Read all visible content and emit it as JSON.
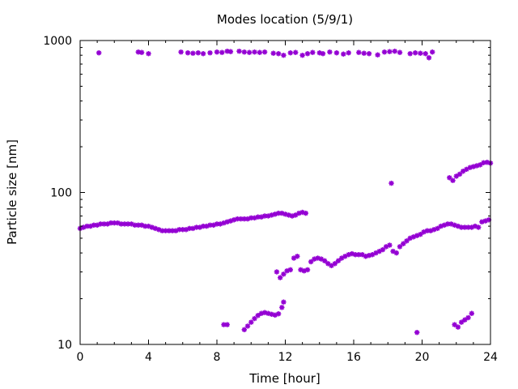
{
  "chart_data": {
    "type": "scatter",
    "title": "Modes location (5/9/1)",
    "xlabel": "Time [hour]",
    "ylabel": "Particle size [nm]",
    "xlim": [
      0,
      24
    ],
    "ylim": [
      10,
      1000
    ],
    "yscale": "log",
    "x_ticks": [
      0,
      4,
      8,
      12,
      16,
      20,
      24
    ],
    "x_tick_labels": [
      "0",
      "4",
      "8",
      "12",
      "16",
      "20",
      "24"
    ],
    "y_ticks": [
      10,
      100,
      1000
    ],
    "y_tick_labels": [
      "10",
      "100",
      "1000"
    ],
    "grid": false,
    "marker_color": "#9400d3",
    "series": [
      {
        "values": [
          [
            0,
            58
          ],
          [
            0.2,
            59
          ],
          [
            0.4,
            60
          ],
          [
            0.6,
            60
          ],
          [
            0.8,
            61
          ],
          [
            1.0,
            61
          ],
          [
            1.2,
            62
          ],
          [
            1.4,
            62
          ],
          [
            1.6,
            62
          ],
          [
            1.8,
            63
          ],
          [
            2.0,
            63
          ],
          [
            2.2,
            63
          ],
          [
            2.4,
            62
          ],
          [
            2.6,
            62
          ],
          [
            2.8,
            62
          ],
          [
            3.0,
            62
          ],
          [
            3.2,
            61
          ],
          [
            3.4,
            61
          ],
          [
            3.6,
            61
          ],
          [
            3.8,
            60
          ],
          [
            4.0,
            60
          ],
          [
            4.2,
            59
          ],
          [
            4.4,
            58
          ],
          [
            4.6,
            57
          ],
          [
            4.8,
            56
          ],
          [
            5.0,
            56
          ],
          [
            5.2,
            56
          ],
          [
            5.4,
            56
          ],
          [
            5.6,
            56
          ],
          [
            5.8,
            57
          ],
          [
            6.0,
            57
          ],
          [
            6.2,
            57
          ],
          [
            6.4,
            58
          ],
          [
            6.6,
            58
          ],
          [
            6.8,
            59
          ],
          [
            7.0,
            59
          ],
          [
            7.2,
            60
          ],
          [
            7.4,
            60
          ],
          [
            7.6,
            61
          ],
          [
            7.8,
            61
          ],
          [
            8.0,
            62
          ],
          [
            8.2,
            62
          ],
          [
            8.4,
            63
          ],
          [
            8.6,
            64
          ],
          [
            8.8,
            65
          ],
          [
            9.0,
            66
          ],
          [
            9.2,
            67
          ],
          [
            9.4,
            67
          ],
          [
            9.6,
            67
          ],
          [
            9.8,
            67
          ],
          [
            10.0,
            68
          ],
          [
            10.2,
            68
          ],
          [
            10.4,
            69
          ],
          [
            10.6,
            69
          ],
          [
            10.8,
            70
          ],
          [
            11.0,
            70
          ],
          [
            11.2,
            71
          ],
          [
            11.4,
            72
          ],
          [
            11.6,
            73
          ],
          [
            11.8,
            73
          ],
          [
            12.0,
            72
          ],
          [
            12.2,
            71
          ],
          [
            12.4,
            70
          ],
          [
            12.6,
            71
          ],
          [
            12.8,
            73
          ],
          [
            13.0,
            74
          ],
          [
            13.2,
            73
          ]
        ]
      },
      {
        "values": [
          [
            1.1,
            830
          ],
          [
            3.4,
            840
          ],
          [
            3.6,
            835
          ],
          [
            4.0,
            820
          ],
          [
            5.9,
            840
          ],
          [
            6.3,
            830
          ],
          [
            6.6,
            825
          ],
          [
            6.9,
            830
          ],
          [
            7.2,
            820
          ],
          [
            7.6,
            830
          ],
          [
            8.0,
            840
          ],
          [
            8.3,
            835
          ],
          [
            8.6,
            850
          ],
          [
            8.8,
            845
          ],
          [
            9.3,
            850
          ],
          [
            9.6,
            840
          ],
          [
            9.9,
            835
          ],
          [
            10.2,
            840
          ],
          [
            10.5,
            835
          ],
          [
            10.8,
            840
          ],
          [
            11.3,
            825
          ],
          [
            11.6,
            820
          ],
          [
            11.9,
            800
          ],
          [
            12.3,
            830
          ],
          [
            12.6,
            835
          ],
          [
            13.0,
            800
          ],
          [
            13.3,
            820
          ],
          [
            13.6,
            835
          ],
          [
            14.0,
            830
          ],
          [
            14.2,
            820
          ],
          [
            14.6,
            840
          ],
          [
            15.0,
            830
          ],
          [
            15.4,
            815
          ],
          [
            15.7,
            830
          ],
          [
            16.3,
            835
          ],
          [
            16.6,
            825
          ],
          [
            16.9,
            820
          ],
          [
            17.4,
            805
          ],
          [
            17.8,
            840
          ],
          [
            18.1,
            845
          ],
          [
            18.4,
            850
          ],
          [
            18.7,
            835
          ],
          [
            19.3,
            820
          ],
          [
            19.6,
            830
          ],
          [
            19.9,
            825
          ],
          [
            20.2,
            820
          ],
          [
            20.4,
            770
          ],
          [
            20.6,
            840
          ]
        ]
      },
      {
        "values": [
          [
            8.4,
            13.5
          ],
          [
            8.6,
            13.5
          ],
          [
            9.6,
            12.5
          ],
          [
            9.8,
            13.2
          ],
          [
            10.0,
            14.0
          ],
          [
            10.2,
            14.8
          ],
          [
            10.4,
            15.5
          ],
          [
            10.6,
            16.0
          ],
          [
            10.8,
            16.2
          ],
          [
            11.0,
            16.0
          ],
          [
            11.2,
            15.8
          ],
          [
            11.4,
            15.6
          ],
          [
            11.6,
            15.9
          ],
          [
            11.8,
            17.5
          ],
          [
            11.9,
            19.0
          ]
        ]
      },
      {
        "values": [
          [
            11.5,
            30
          ],
          [
            11.7,
            27.5
          ],
          [
            11.9,
            29
          ],
          [
            12.1,
            30.5
          ],
          [
            12.3,
            31
          ],
          [
            12.5,
            37
          ],
          [
            12.7,
            38
          ],
          [
            12.9,
            31
          ],
          [
            13.1,
            30.5
          ],
          [
            13.3,
            31
          ],
          [
            13.5,
            35
          ],
          [
            13.7,
            36.5
          ],
          [
            13.9,
            37
          ],
          [
            14.1,
            36.5
          ],
          [
            14.3,
            35.5
          ],
          [
            14.5,
            34
          ],
          [
            14.7,
            33
          ],
          [
            14.9,
            34
          ],
          [
            15.1,
            35.5
          ],
          [
            15.3,
            37
          ],
          [
            15.5,
            38
          ],
          [
            15.7,
            39
          ],
          [
            15.9,
            39.5
          ],
          [
            16.1,
            39
          ],
          [
            16.3,
            39
          ],
          [
            16.5,
            39
          ],
          [
            16.7,
            38
          ],
          [
            16.9,
            38.5
          ],
          [
            17.1,
            39
          ],
          [
            17.3,
            40
          ],
          [
            17.5,
            41
          ],
          [
            17.7,
            42
          ],
          [
            17.9,
            44
          ],
          [
            18.1,
            45
          ],
          [
            18.3,
            41
          ],
          [
            18.5,
            40
          ],
          [
            18.7,
            44
          ],
          [
            18.9,
            46
          ],
          [
            19.1,
            48
          ],
          [
            19.3,
            50
          ],
          [
            19.5,
            51
          ],
          [
            19.7,
            52
          ],
          [
            19.9,
            53
          ],
          [
            20.1,
            55
          ],
          [
            20.3,
            56
          ],
          [
            20.5,
            56
          ],
          [
            20.7,
            57
          ],
          [
            20.9,
            58
          ],
          [
            21.1,
            60
          ],
          [
            21.3,
            61
          ],
          [
            21.5,
            62
          ],
          [
            21.7,
            62
          ],
          [
            21.9,
            61
          ],
          [
            22.1,
            60
          ],
          [
            22.3,
            59
          ],
          [
            22.5,
            59
          ],
          [
            22.7,
            59
          ],
          [
            22.9,
            59
          ],
          [
            23.1,
            60
          ],
          [
            23.3,
            59
          ],
          [
            23.5,
            64
          ],
          [
            23.7,
            65
          ],
          [
            23.9,
            66
          ]
        ]
      },
      {
        "values": [
          [
            18.2,
            115
          ],
          [
            21.6,
            125
          ],
          [
            21.8,
            120
          ],
          [
            22.0,
            128
          ],
          [
            22.2,
            132
          ],
          [
            22.4,
            138
          ],
          [
            22.6,
            142
          ],
          [
            22.8,
            146
          ],
          [
            23.0,
            148
          ],
          [
            23.2,
            150
          ],
          [
            23.4,
            152
          ],
          [
            23.6,
            157
          ],
          [
            23.8,
            158
          ],
          [
            24.0,
            156
          ]
        ]
      },
      {
        "values": [
          [
            19.7,
            12
          ],
          [
            21.9,
            13.5
          ],
          [
            22.1,
            13
          ],
          [
            22.3,
            14
          ],
          [
            22.5,
            14.5
          ],
          [
            22.7,
            15
          ],
          [
            22.9,
            16
          ]
        ]
      }
    ]
  }
}
